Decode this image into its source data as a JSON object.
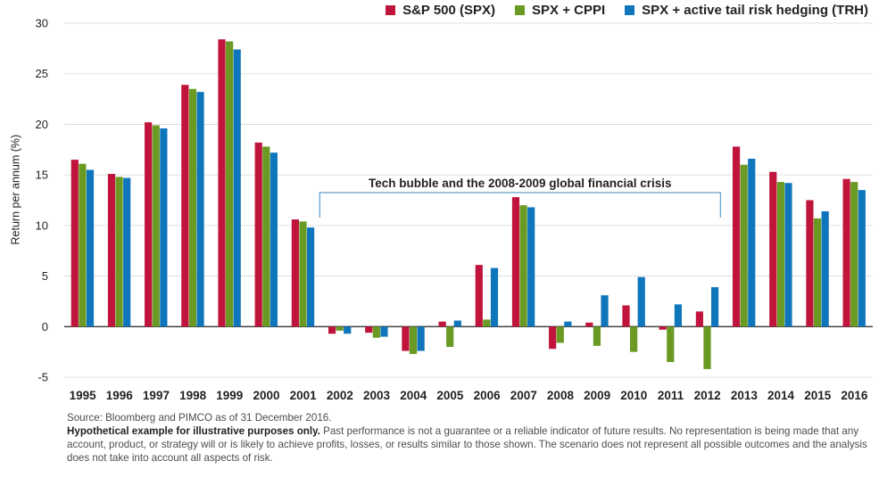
{
  "chart_data": {
    "type": "bar",
    "categories": [
      "1995",
      "1996",
      "1997",
      "1998",
      "1999",
      "2000",
      "2001",
      "2002",
      "2003",
      "2004",
      "2005",
      "2006",
      "2007",
      "2008",
      "2009",
      "2010",
      "2011",
      "2012",
      "2013",
      "2014",
      "2015",
      "2016"
    ],
    "series": [
      {
        "name": "S&P 500 (SPX)",
        "color": "#c0143c",
        "values": [
          16.5,
          15.1,
          20.2,
          23.9,
          28.4,
          18.2,
          10.6,
          -0.7,
          -0.6,
          -2.4,
          0.5,
          6.1,
          12.8,
          -2.2,
          0.4,
          2.1,
          -0.3,
          1.5,
          17.8,
          15.3,
          12.5,
          14.6
        ]
      },
      {
        "name": "SPX + CPPI",
        "color": "#6a9a23",
        "values": [
          16.1,
          14.8,
          19.9,
          23.5,
          28.2,
          17.8,
          10.4,
          -0.4,
          -1.1,
          -2.7,
          -2.0,
          0.7,
          12.0,
          -1.6,
          -1.9,
          -2.5,
          -3.5,
          -4.2,
          16.0,
          14.3,
          10.7,
          14.3
        ]
      },
      {
        "name": "SPX + active tail risk hedging (TRH)",
        "color": "#0f76bc",
        "values": [
          15.5,
          14.7,
          19.6,
          23.2,
          27.4,
          17.2,
          9.8,
          -0.7,
          -1.0,
          -2.4,
          0.6,
          5.8,
          11.8,
          0.5,
          3.1,
          4.9,
          2.2,
          3.9,
          16.6,
          14.2,
          11.4,
          13.5
        ]
      }
    ],
    "title": "",
    "xlabel": "",
    "ylabel": "Return per annum (%)",
    "ylim": [
      -5,
      30
    ],
    "yticks": [
      -5,
      0,
      5,
      10,
      15,
      20,
      25,
      30
    ],
    "grid": true,
    "legend_position": "top-right",
    "annotation": {
      "text": "Tech bubble and the 2008-2009 global financial crisis",
      "from": "2002",
      "to": "2012"
    }
  },
  "footer": {
    "source": "Source: Bloomberg and PIMCO as of 31 December 2016.",
    "disclaimer_bold": "Hypothetical example for illustrative purposes only.",
    "disclaimer_text": " Past performance is not a guarantee or a reliable indicator of future results. No representation is being made that any account, product, or strategy will or is likely to achieve profits, losses, or results similar to those shown. The scenario does not represent all possible outcomes and the analysis does not take into account all aspects of risk."
  }
}
